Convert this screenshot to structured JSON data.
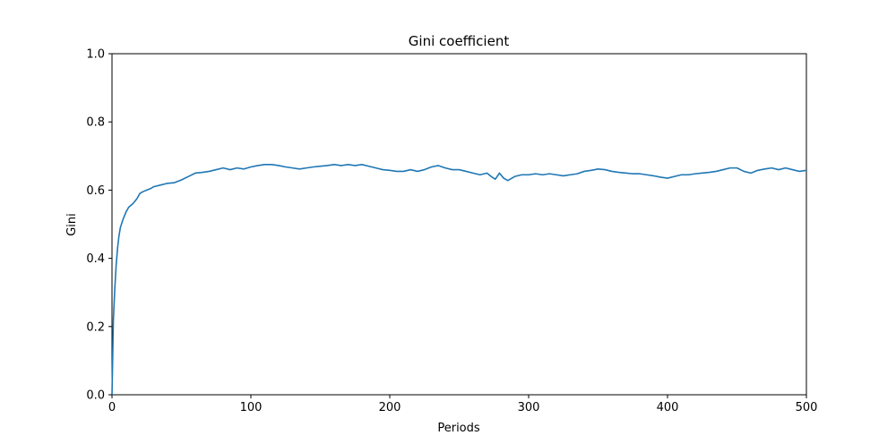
{
  "chart_data": {
    "type": "line",
    "title": "Gini coefficient",
    "xlabel": "Periods",
    "ylabel": "Gini",
    "xlim": [
      0,
      500
    ],
    "ylim": [
      0.0,
      1.0
    ],
    "x_ticks": [
      0,
      100,
      200,
      300,
      400,
      500
    ],
    "x_tick_labels": [
      "0",
      "100",
      "200",
      "300",
      "400",
      "500"
    ],
    "y_ticks": [
      0.0,
      0.2,
      0.4,
      0.6,
      0.8,
      1.0
    ],
    "y_tick_labels": [
      "0.0",
      "0.2",
      "0.4",
      "0.6",
      "0.8",
      "1.0"
    ],
    "grid": false,
    "series": [
      {
        "color": "#1f77b4",
        "x": [
          0,
          1,
          2,
          3,
          4,
          5,
          6,
          8,
          10,
          12,
          15,
          18,
          20,
          22,
          25,
          28,
          30,
          35,
          40,
          45,
          50,
          55,
          60,
          65,
          70,
          75,
          80,
          85,
          90,
          95,
          100,
          105,
          110,
          115,
          120,
          125,
          130,
          135,
          140,
          145,
          150,
          155,
          160,
          165,
          170,
          175,
          180,
          185,
          190,
          195,
          200,
          205,
          210,
          215,
          220,
          225,
          230,
          235,
          240,
          245,
          250,
          255,
          260,
          265,
          270,
          273,
          276,
          279,
          282,
          285,
          290,
          295,
          300,
          305,
          310,
          315,
          320,
          325,
          330,
          335,
          340,
          345,
          350,
          355,
          360,
          365,
          370,
          375,
          380,
          385,
          390,
          395,
          400,
          405,
          410,
          415,
          420,
          425,
          430,
          435,
          440,
          445,
          450,
          455,
          460,
          465,
          470,
          475,
          480,
          485,
          490,
          495,
          500
        ],
        "y": [
          0.0,
          0.22,
          0.31,
          0.38,
          0.43,
          0.465,
          0.49,
          0.515,
          0.535,
          0.55,
          0.56,
          0.575,
          0.59,
          0.595,
          0.6,
          0.605,
          0.61,
          0.615,
          0.62,
          0.622,
          0.63,
          0.64,
          0.65,
          0.652,
          0.655,
          0.66,
          0.665,
          0.66,
          0.665,
          0.662,
          0.668,
          0.672,
          0.675,
          0.675,
          0.672,
          0.668,
          0.665,
          0.662,
          0.665,
          0.668,
          0.67,
          0.672,
          0.675,
          0.672,
          0.675,
          0.672,
          0.675,
          0.67,
          0.665,
          0.66,
          0.658,
          0.655,
          0.655,
          0.66,
          0.655,
          0.66,
          0.668,
          0.672,
          0.665,
          0.66,
          0.66,
          0.655,
          0.65,
          0.645,
          0.65,
          0.64,
          0.632,
          0.65,
          0.635,
          0.628,
          0.64,
          0.645,
          0.645,
          0.648,
          0.645,
          0.648,
          0.645,
          0.642,
          0.645,
          0.648,
          0.655,
          0.658,
          0.662,
          0.66,
          0.655,
          0.652,
          0.65,
          0.648,
          0.648,
          0.645,
          0.642,
          0.638,
          0.635,
          0.64,
          0.645,
          0.645,
          0.648,
          0.65,
          0.652,
          0.655,
          0.66,
          0.665,
          0.665,
          0.655,
          0.65,
          0.658,
          0.662,
          0.665,
          0.66,
          0.665,
          0.66,
          0.655,
          0.658
        ]
      }
    ]
  }
}
